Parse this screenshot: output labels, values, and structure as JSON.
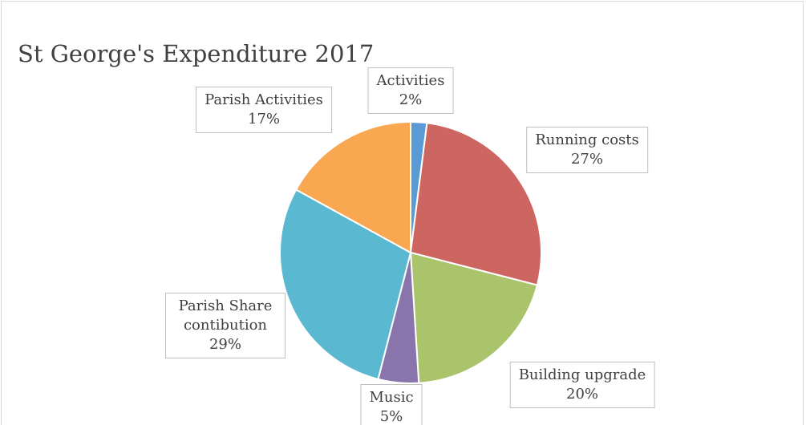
{
  "chart_data": {
    "type": "pie",
    "title": "St George's Expenditure 2017",
    "categories": [
      "Activities",
      "Running costs",
      "Building upgrade",
      "Music",
      "Parish Share contibution",
      "Parish Activities"
    ],
    "values": [
      2,
      27,
      20,
      5,
      29,
      17
    ],
    "value_labels": [
      "2%",
      "27%",
      "20%",
      "5%",
      "29%",
      "17%"
    ],
    "colors": [
      "#5b9bd5",
      "#cd6560",
      "#a9c46a",
      "#8a74ac",
      "#5ab8d0",
      "#f9a851"
    ]
  }
}
